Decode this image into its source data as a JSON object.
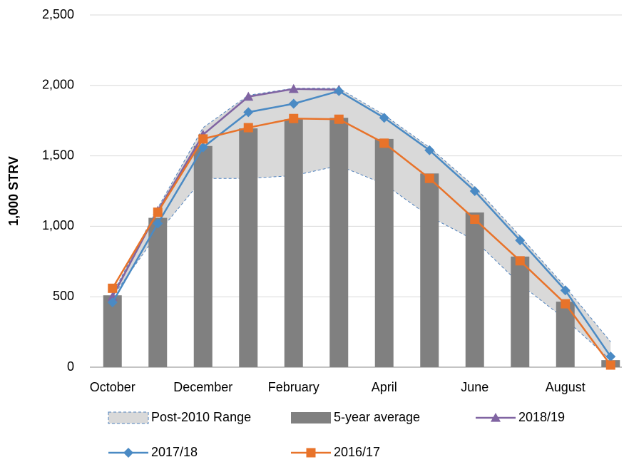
{
  "chart_data": {
    "type": "combo",
    "y_label": "1,000 STRV",
    "categories": [
      "October",
      null,
      "December",
      null,
      "February",
      null,
      "April",
      null,
      "June",
      null,
      "August",
      null
    ],
    "ylim": [
      0,
      2500
    ],
    "yticks": [
      0,
      {
        "value": 500,
        "label": "500"
      },
      {
        "value": 1000,
        "label": "1,000"
      },
      {
        "value": 1500,
        "label": "1,500"
      },
      {
        "value": 2000,
        "label": "2,000"
      },
      {
        "value": 2500,
        "label": "2,500"
      }
    ],
    "grid": true,
    "series": [
      {
        "name": "Post-2010 Range",
        "type": "range",
        "color": "#d9d9d9",
        "edge_color": "#4f81bd",
        "low": [
          500,
          950,
          1340,
          1340,
          1360,
          1430,
          1300,
          1070,
          900,
          590,
          340,
          50
        ],
        "high": [
          520,
          1130,
          1700,
          1930,
          1980,
          1980,
          1790,
          1560,
          1280,
          930,
          570,
          180
        ]
      },
      {
        "name": "5-year average",
        "type": "bar",
        "color": "#808080",
        "values": [
          510,
          1060,
          1570,
          1695,
          1760,
          1770,
          1620,
          1375,
          1098,
          785,
          465,
          50
        ]
      },
      {
        "name": "2018/19",
        "type": "line",
        "marker": "triangle",
        "color": "#8064a2",
        "values": [
          500,
          1110,
          1650,
          1920,
          1975,
          1970,
          null,
          null,
          null,
          null,
          null,
          null
        ]
      },
      {
        "name": "2017/18",
        "type": "line",
        "marker": "diamond",
        "color": "#4a8ac4",
        "values": [
          460,
          1020,
          1560,
          1810,
          1870,
          1960,
          1770,
          1540,
          1250,
          900,
          545,
          75
        ]
      },
      {
        "name": "2016/17",
        "type": "line",
        "marker": "square",
        "color": "#e8732a",
        "values": [
          560,
          1100,
          1620,
          1700,
          1765,
          1760,
          1590,
          1340,
          1050,
          755,
          450,
          15
        ]
      }
    ]
  }
}
